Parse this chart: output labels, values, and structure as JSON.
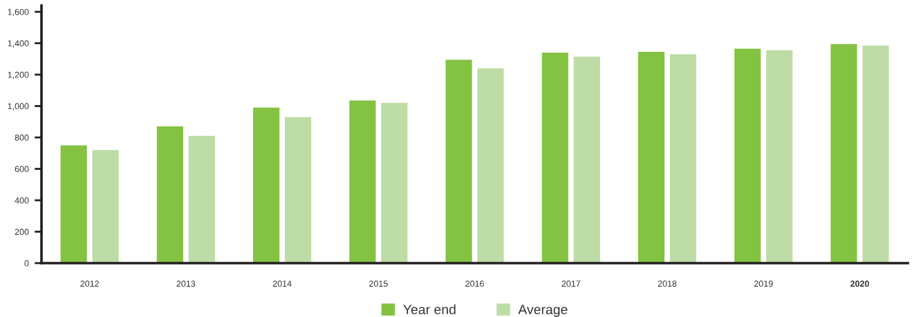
{
  "chart_data": {
    "type": "bar",
    "categories": [
      "2012",
      "2013",
      "2014",
      "2015",
      "2016",
      "2017",
      "2018",
      "2019",
      "2020"
    ],
    "series": [
      {
        "name": "Year end",
        "color": "#84c242",
        "values": [
          750,
          870,
          990,
          1035,
          1295,
          1340,
          1345,
          1365,
          1395
        ]
      },
      {
        "name": "Average",
        "color": "#bddca6",
        "values": [
          720,
          810,
          930,
          1020,
          1240,
          1315,
          1330,
          1355,
          1385
        ]
      }
    ],
    "ylim": [
      0,
      1640
    ],
    "yticks": [
      0,
      200,
      400,
      600,
      800,
      {
        "value": 1000,
        "label": "1,000"
      },
      {
        "value": 1200,
        "label": "1,200"
      },
      {
        "value": 1400,
        "label": "1,400"
      },
      {
        "value": 1600,
        "label": "1,600"
      }
    ],
    "grid": false,
    "legend": "bottom"
  }
}
